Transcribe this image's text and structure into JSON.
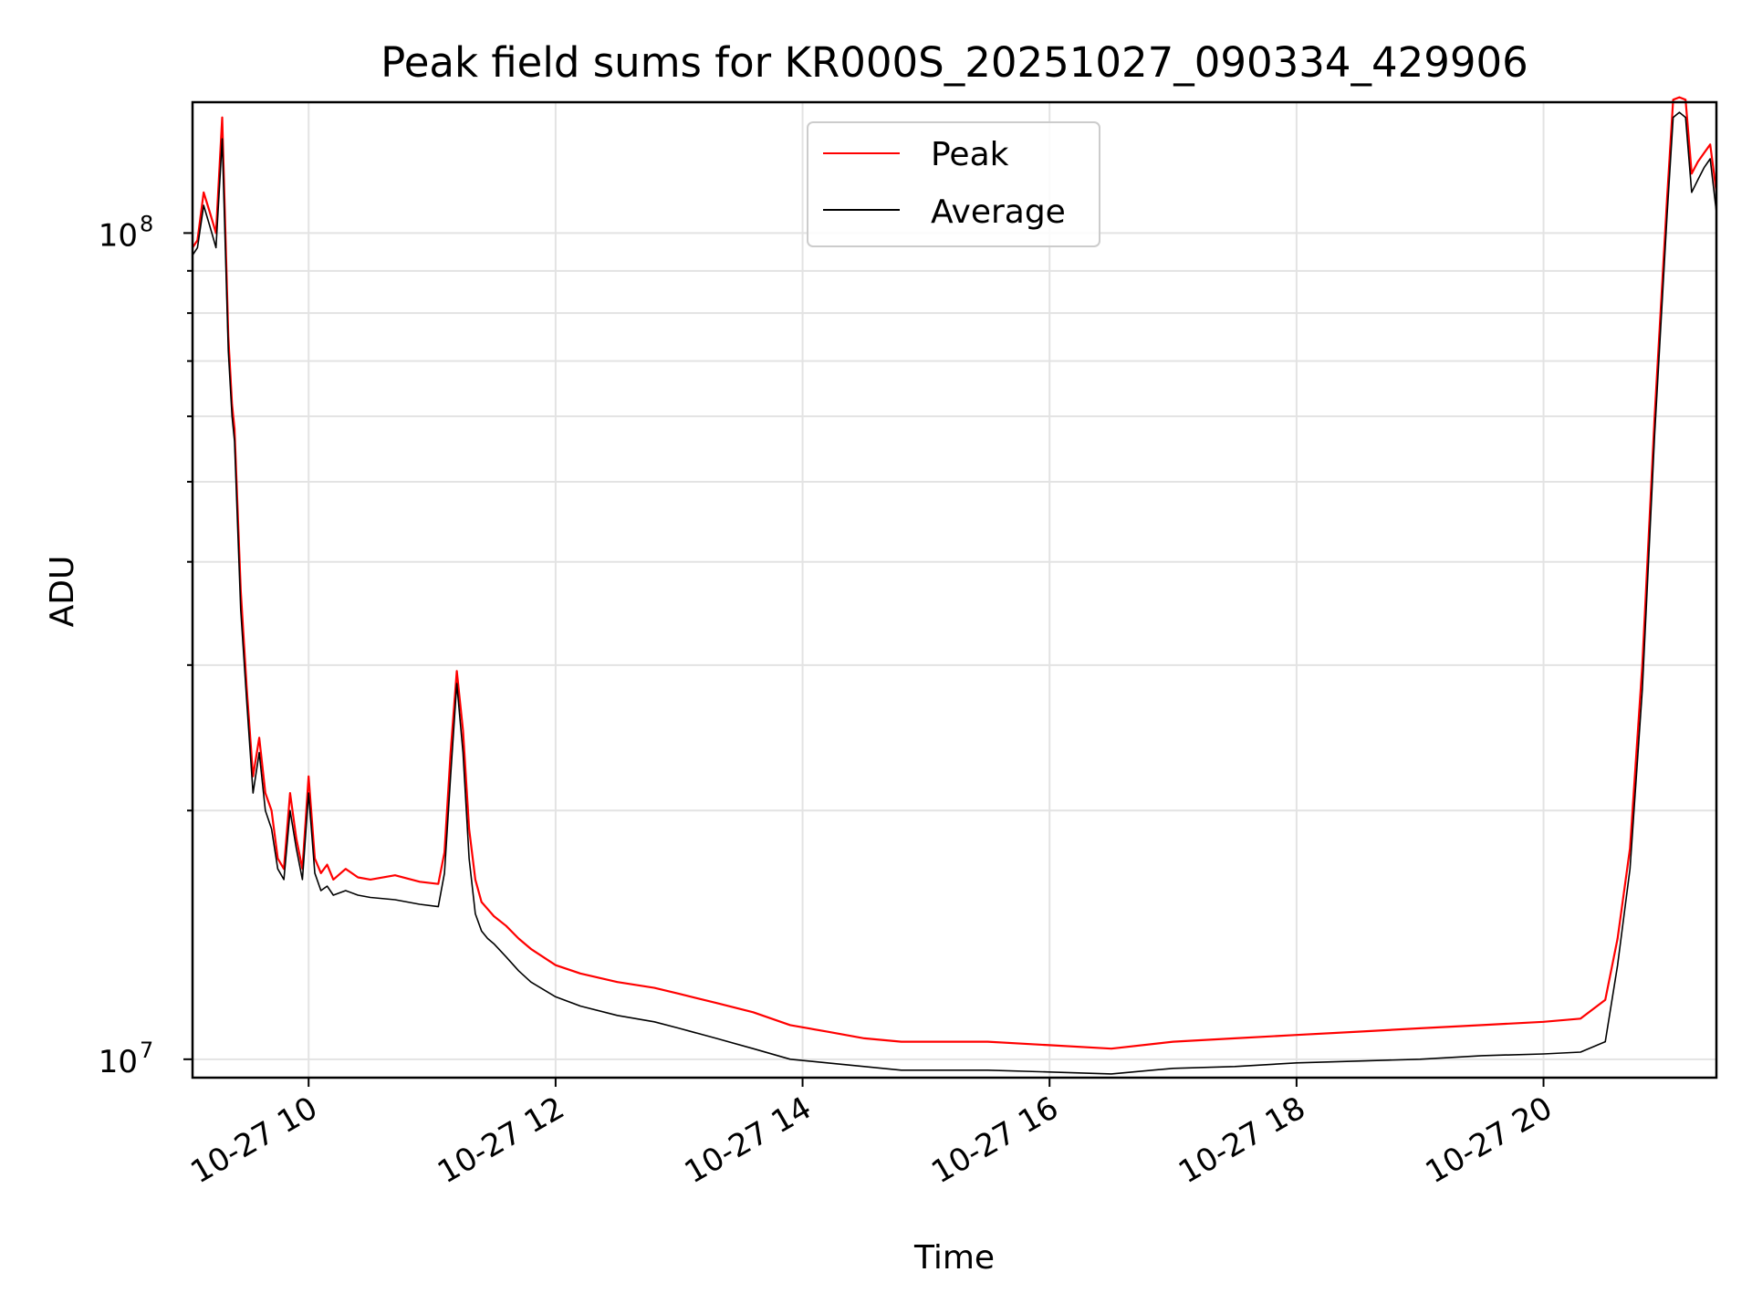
{
  "chart_data": {
    "type": "line",
    "title": "Peak field sums for KR000S_20251027_090334_429906",
    "xlabel": "Time",
    "ylabel": "ADU",
    "yscale": "log",
    "xlim": [
      9.06,
      21.4
    ],
    "ylim": [
      9500000,
      144000000
    ],
    "grid": true,
    "legend_position": "upper-center",
    "x_ticks": [
      {
        "value": 10,
        "label": "10-27 10"
      },
      {
        "value": 12,
        "label": "10-27 12"
      },
      {
        "value": 14,
        "label": "10-27 14"
      },
      {
        "value": 16,
        "label": "10-27 16"
      },
      {
        "value": 18,
        "label": "10-27 18"
      },
      {
        "value": 20,
        "label": "10-27 20"
      }
    ],
    "y_major_ticks": [
      {
        "value": 10000000,
        "base": "10",
        "exp": "7"
      },
      {
        "value": 100000000,
        "base": "10",
        "exp": "8"
      }
    ],
    "y_minor_ticks": [
      20000000,
      30000000,
      40000000,
      50000000,
      60000000,
      70000000,
      80000000,
      90000000
    ],
    "series": [
      {
        "name": "Peak",
        "color": "#ff0000",
        "x": [
          9.06,
          9.1,
          9.15,
          9.2,
          9.25,
          9.3,
          9.35,
          9.38,
          9.4,
          9.45,
          9.5,
          9.55,
          9.6,
          9.65,
          9.7,
          9.75,
          9.8,
          9.85,
          9.9,
          9.95,
          10.0,
          10.05,
          10.1,
          10.15,
          10.2,
          10.3,
          10.4,
          10.5,
          10.7,
          10.9,
          11.05,
          11.1,
          11.15,
          11.2,
          11.25,
          11.3,
          11.35,
          11.4,
          11.45,
          11.5,
          11.6,
          11.7,
          11.8,
          12.0,
          12.2,
          12.5,
          12.8,
          13.0,
          13.3,
          13.6,
          13.9,
          14.2,
          14.5,
          14.8,
          15.0,
          15.5,
          16.0,
          16.5,
          17.0,
          17.5,
          18.0,
          18.5,
          19.0,
          19.5,
          20.0,
          20.3,
          20.5,
          20.6,
          20.7,
          20.8,
          20.9,
          21.0,
          21.05,
          21.1,
          21.15,
          21.2,
          21.25,
          21.3,
          21.35,
          21.4
        ],
        "y": [
          96000000,
          98000000,
          112000000,
          106000000,
          100000000,
          138000000,
          75000000,
          62000000,
          58000000,
          37000000,
          28000000,
          22000000,
          24500000,
          21000000,
          20000000,
          17500000,
          17000000,
          21000000,
          18500000,
          17000000,
          22000000,
          17500000,
          16800000,
          17200000,
          16500000,
          17000000,
          16600000,
          16500000,
          16700000,
          16400000,
          16300000,
          17800000,
          23500000,
          29500000,
          25000000,
          19000000,
          16500000,
          15500000,
          15200000,
          14900000,
          14500000,
          14000000,
          13600000,
          13000000,
          12700000,
          12400000,
          12200000,
          12000000,
          11700000,
          11400000,
          11000000,
          10800000,
          10600000,
          10500000,
          10500000,
          10500000,
          10400000,
          10300000,
          10500000,
          10600000,
          10700000,
          10800000,
          10900000,
          11000000,
          11100000,
          11200000,
          11800000,
          14000000,
          18000000,
          30000000,
          60000000,
          110000000,
          145000000,
          146000000,
          145000000,
          118000000,
          122000000,
          125000000,
          128000000,
          112000000
        ]
      },
      {
        "name": "Average",
        "color": "#000000",
        "x": [
          9.06,
          9.1,
          9.15,
          9.2,
          9.25,
          9.3,
          9.35,
          9.38,
          9.4,
          9.45,
          9.5,
          9.55,
          9.6,
          9.65,
          9.7,
          9.75,
          9.8,
          9.85,
          9.9,
          9.95,
          10.0,
          10.05,
          10.1,
          10.15,
          10.2,
          10.3,
          10.4,
          10.5,
          10.7,
          10.9,
          11.05,
          11.1,
          11.15,
          11.2,
          11.25,
          11.3,
          11.35,
          11.4,
          11.45,
          11.5,
          11.6,
          11.7,
          11.8,
          12.0,
          12.2,
          12.5,
          12.8,
          13.0,
          13.3,
          13.6,
          13.9,
          14.2,
          14.5,
          14.8,
          15.0,
          15.5,
          16.0,
          16.5,
          17.0,
          17.5,
          18.0,
          18.5,
          19.0,
          19.5,
          20.0,
          20.3,
          20.5,
          20.6,
          20.7,
          20.8,
          20.9,
          21.0,
          21.05,
          21.1,
          21.15,
          21.2,
          21.25,
          21.3,
          21.35,
          21.4
        ],
        "y": [
          94000000,
          96000000,
          108000000,
          102000000,
          96000000,
          130000000,
          72000000,
          60000000,
          56000000,
          35000000,
          27000000,
          21000000,
          23500000,
          20000000,
          19000000,
          17000000,
          16500000,
          20000000,
          18000000,
          16500000,
          21000000,
          16800000,
          16000000,
          16200000,
          15800000,
          16000000,
          15800000,
          15700000,
          15600000,
          15400000,
          15300000,
          16800000,
          22000000,
          28500000,
          23500000,
          17500000,
          15000000,
          14300000,
          14000000,
          13800000,
          13300000,
          12800000,
          12400000,
          11900000,
          11600000,
          11300000,
          11100000,
          10900000,
          10600000,
          10300000,
          10000000,
          9900000,
          9800000,
          9700000,
          9700000,
          9700000,
          9650000,
          9600000,
          9750000,
          9800000,
          9900000,
          9950000,
          10000000,
          10100000,
          10150000,
          10200000,
          10500000,
          13000000,
          17000000,
          28000000,
          57000000,
          105000000,
          138000000,
          140000000,
          138000000,
          112000000,
          116000000,
          120000000,
          123000000,
          106000000
        ]
      }
    ]
  }
}
